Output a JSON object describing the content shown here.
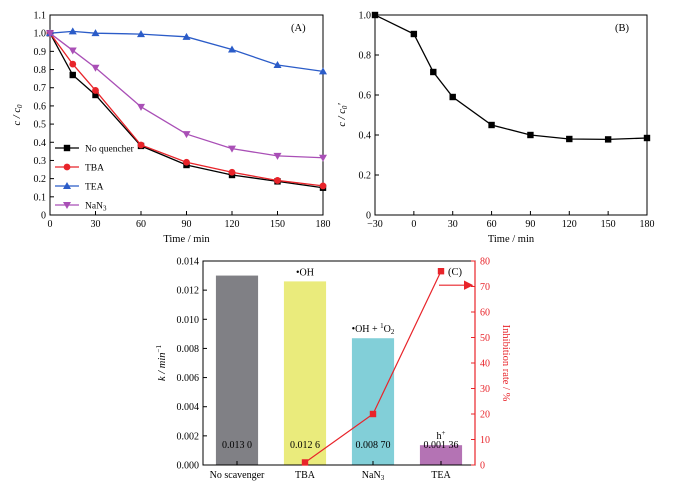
{
  "charts": {
    "A": {
      "panel_label": "(A)",
      "type": "line",
      "xlabel": "Time / min",
      "ylabel": "c / c",
      "ylabel_sub": "0",
      "xlim": [
        0,
        180
      ],
      "ylim": [
        0,
        1.1
      ],
      "xticks": [
        "0",
        "30",
        "60",
        "90",
        "120",
        "150",
        "180"
      ],
      "yticks": [
        "0",
        "0.1",
        "0.2",
        "0.3",
        "0.4",
        "0.5",
        "0.6",
        "0.7",
        "0.8",
        "0.9",
        "1.0",
        "1.1"
      ],
      "series": [
        {
          "name": "No quencher",
          "color": "#000000",
          "marker": "square",
          "x": [
            0,
            15,
            30,
            60,
            90,
            120,
            150,
            180
          ],
          "y": [
            1.0,
            0.77,
            0.66,
            0.38,
            0.275,
            0.22,
            0.185,
            0.15
          ]
        },
        {
          "name": "TBA",
          "color": "#e8242a",
          "marker": "circle",
          "x": [
            0,
            15,
            30,
            60,
            90,
            120,
            150,
            180
          ],
          "y": [
            1.0,
            0.83,
            0.685,
            0.385,
            0.29,
            0.235,
            0.19,
            0.16
          ]
        },
        {
          "name": "TEA",
          "color": "#2b5cc8",
          "marker": "triangle-up",
          "x": [
            0,
            15,
            30,
            60,
            90,
            120,
            150,
            180
          ],
          "y": [
            1.0,
            1.01,
            1.0,
            0.995,
            0.98,
            0.91,
            0.825,
            0.79
          ]
        },
        {
          "name": "NaN",
          "name_sub": "3",
          "color": "#a94fb6",
          "marker": "triangle-down",
          "x": [
            0,
            15,
            30,
            60,
            90,
            120,
            150,
            180
          ],
          "y": [
            1.0,
            0.905,
            0.81,
            0.595,
            0.445,
            0.365,
            0.325,
            0.315
          ]
        }
      ]
    },
    "B": {
      "panel_label": "(B)",
      "type": "line",
      "xlabel": "Time / min",
      "ylabel": "c / c",
      "ylabel_sub": "0",
      "ylabel_prime": "'",
      "xlim": [
        -30,
        180
      ],
      "ylim": [
        0,
        1.0
      ],
      "xticks": [
        "−30",
        "0",
        "30",
        "60",
        "90",
        "120",
        "150",
        "180"
      ],
      "yticks": [
        "0",
        "0.2",
        "0.4",
        "0.6",
        "0.8",
        "1.0"
      ],
      "series": [
        {
          "color": "#000000",
          "marker": "square",
          "x": [
            -30,
            0,
            15,
            30,
            60,
            90,
            120,
            150,
            180
          ],
          "y": [
            1.0,
            0.905,
            0.715,
            0.59,
            0.45,
            0.4,
            0.38,
            0.378,
            0.385
          ]
        }
      ]
    },
    "C": {
      "panel_label": "(C)",
      "type": "bar",
      "ylabel": "k / min",
      "ylabel_sup": "−1",
      "ylabel_right": "Inhibition rate / %",
      "ylim": [
        0,
        0.014
      ],
      "ylim_right": [
        0,
        80
      ],
      "yticks": [
        "0.000",
        "0.002",
        "0.004",
        "0.006",
        "0.008",
        "0.010",
        "0.012",
        "0.014"
      ],
      "yticks_right": [
        "0",
        "10",
        "20",
        "30",
        "40",
        "50",
        "60",
        "70",
        "80"
      ],
      "categories": [
        "No scavenger",
        "TBA",
        "NaN3",
        "TEA"
      ],
      "category_display": [
        {
          "main": "No scavenger",
          "sub": ""
        },
        {
          "main": "TBA",
          "sub": ""
        },
        {
          "main": "NaN",
          "sub": "3"
        },
        {
          "main": "TEA",
          "sub": ""
        }
      ],
      "values": [
        0.013,
        0.0126,
        0.0087,
        0.00136
      ],
      "value_labels": [
        "0.013 0",
        "0.012 6",
        "0.008 70",
        "0.001 36"
      ],
      "bar_colors": [
        "#808085",
        "#eaeb7c",
        "#82cfd8",
        "#b473b4"
      ],
      "annotations": [
        {
          "bar": 1,
          "text": "•OH"
        },
        {
          "bar": 2,
          "text": "•OH + ",
          "sup": "1",
          "text2": "O",
          "sub": "2"
        },
        {
          "bar": 3,
          "text": "h",
          "sup": "+"
        }
      ],
      "inhibition_series": {
        "color": "#e8242a",
        "x_bars": [
          1,
          2,
          3
        ],
        "values": [
          1,
          20,
          76
        ]
      }
    }
  }
}
